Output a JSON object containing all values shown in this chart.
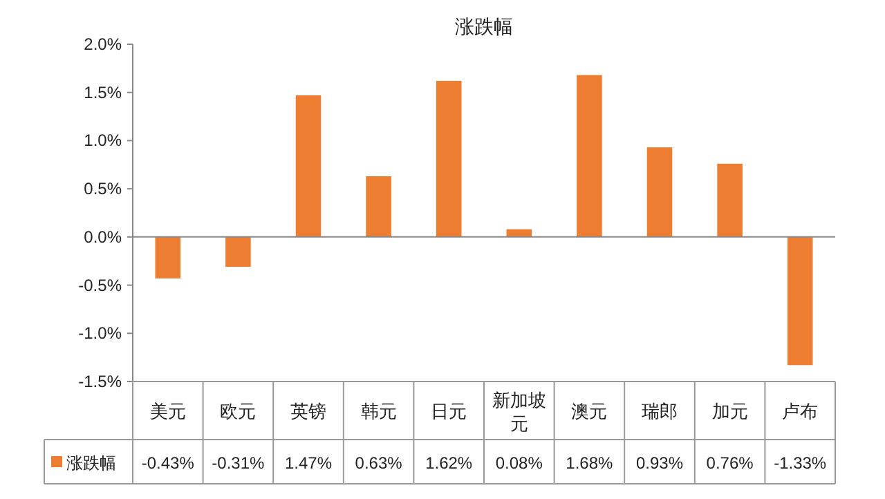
{
  "chart_data": {
    "type": "bar",
    "title": "涨跌幅",
    "categories": [
      "美元",
      "欧元",
      "英镑",
      "韩元",
      "日元",
      "新加坡元",
      "澳元",
      "瑞郎",
      "加元",
      "卢布"
    ],
    "series": [
      {
        "name": "涨跌幅",
        "color": "#ed7d31",
        "values": [
          -0.43,
          -0.31,
          1.47,
          0.63,
          1.62,
          0.08,
          1.68,
          0.93,
          0.76,
          -1.33
        ],
        "value_labels": [
          "-0.43%",
          "-0.31%",
          "1.47%",
          "0.63%",
          "1.62%",
          "0.08%",
          "1.68%",
          "0.93%",
          "0.76%",
          "-1.33%"
        ]
      }
    ],
    "ylim": [
      -1.5,
      2.0
    ],
    "yticks": [
      {
        "value": -1.5,
        "label": "-1.5%"
      },
      {
        "value": -1.0,
        "label": "-1.0%"
      },
      {
        "value": -0.5,
        "label": "-0.5%"
      },
      {
        "value": 0,
        "label": "0.0%"
      },
      {
        "value": 0.5,
        "label": "0.5%"
      },
      {
        "value": 1.0,
        "label": "1.0%"
      },
      {
        "value": 1.5,
        "label": "1.5%"
      },
      {
        "value": 2.0,
        "label": "2.0%"
      }
    ],
    "legend": "bottom"
  }
}
